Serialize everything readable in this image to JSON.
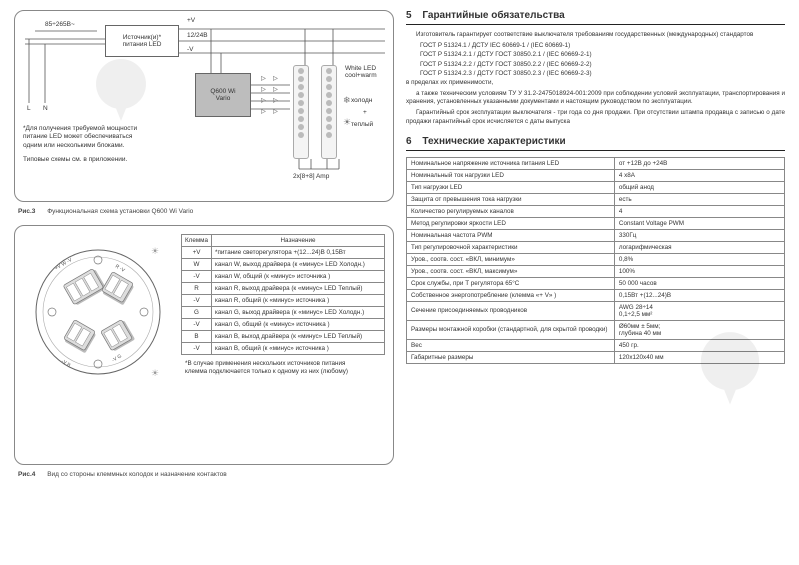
{
  "diagram1": {
    "voltage_in": "85÷265В~",
    "psu_label": "Источник(и)*\nпитания LED",
    "l_label": "L",
    "n_label": "N",
    "plus_v": "+V",
    "rail_v": "12/24В",
    "minus_v": "-V",
    "controller": "Q600 Wi\nVario",
    "led_label": "White LED\ncool+warm",
    "cold": "холодн",
    "plus": "+",
    "warm": "теплый",
    "amp": "2x[8+8] Amp",
    "note1": "*Для получения требуемой мощности\nпитание LED может обеспечиваться\nодним или несколькими блоками.",
    "note2": "Типовые схемы см. в приложении."
  },
  "caption1": "Рис.3",
  "caption1_text": "Функциональная схема установки Q600 Wi Vario",
  "terminals": {
    "col_klemma": "Клемма",
    "col_purpose": "Назначение",
    "rows": [
      {
        "k": "+V",
        "p": "*питание светорегулятора   +(12...24)В   0,15Вт"
      },
      {
        "k": "W",
        "p": "канал W, выход драйвера   (к «минус» LED Холодн.)"
      },
      {
        "k": "-V",
        "p": "канал W, общий                 (к «минус» источника )"
      },
      {
        "k": "R",
        "p": "канал R, выход драйвера   (к «минус» LED Теплый)"
      },
      {
        "k": "-V",
        "p": "канал R, общий                 (к «минус» источника )"
      },
      {
        "k": "G",
        "p": "канал G, выход драйвера (к «минус» LED Холодн.)"
      },
      {
        "k": "-V",
        "p": "канал G, общий                 (к «минус» источника )"
      },
      {
        "k": "B",
        "p": "канал B, выход драйвера  (к «минус» LED Теплый)"
      },
      {
        "k": "-V",
        "p": "канал B, общий                 (к «минус» источника )"
      }
    ],
    "footnote": "*В случае применения нескольких источников питания\nклемма подключается только к одному из них (любому)"
  },
  "caption2": "Рис.4",
  "caption2_text": "Вид со стороны клеммных колодок и назначение контактов",
  "circ_labels": {
    "tl": "+V W -V",
    "tr": "R -V",
    "bl": "-V B",
    "br": "-V G"
  },
  "sect5": {
    "num": "5",
    "title": "Гарантийные обязательства",
    "p1": "Изготовитель гарантирует соответствие выключателя требованиям государственных (международных) стандартов",
    "std1": "ГОСТ Р 51324.1 / ДСТУ IEC 60669-1        / (IEC 60669-1)",
    "std2": "ГОСТ Р 51324.2.1 / ДСТУ ГОСТ 30850.2.1 / (IEC 60669-2-1)",
    "std3": "ГОСТ Р 51324.2.2 / ДСТУ ГОСТ 30850.2.2 / (IEC 60669-2-2)",
    "std4": "ГОСТ Р 51324.2.3 / ДСТУ ГОСТ 30850.2.3 / (IEC 60669-2-3)",
    "p2": "в пределах их применимости,",
    "p3": "а также техническим условиям ТУ У 31.2-2475018924-001:2009 при соблюдении условий эксплуатации, транспортирования и хранения, установленных указанными документами и настоящим руководством по эксплуатации.",
    "p4": "Гарантийный срок эксплуатации выключателя - три года со дня продажи. При отсутствии штампа продавца с записью о дате продажи гарантийный срок исчисляется с даты выпуска"
  },
  "sect6": {
    "num": "6",
    "title": "Технические характеристики",
    "rows": [
      {
        "k": "Номинальное напряжение источника питания LED",
        "v": "от  +12В до  +24В"
      },
      {
        "k": "Номинальный ток нагрузки LED",
        "v": "4 х8А"
      },
      {
        "k": "Тип нагрузки LED",
        "v": "общий анод"
      },
      {
        "k": "Защита от превышения тока нагрузки",
        "v": "есть"
      },
      {
        "k": "Количество регулируемых каналов",
        "v": "4"
      },
      {
        "k": "Метод регулировки яркости LED",
        "v": "Constant Voltage PWM"
      },
      {
        "k": "Номинальная частота PWM",
        "v": "330Гц"
      },
      {
        "k": "Тип регулировочной характеристики",
        "v": "логарифмическая"
      },
      {
        "k": "Уров., соотв. сост. «ВКЛ, минимум»",
        "v": "0,8%"
      },
      {
        "k": "Уров., соотв. сост. «ВКЛ, максимум»",
        "v": "100%"
      },
      {
        "k": "Срок службы, при Т регулятора  65°С",
        "v": "50 000 часов"
      },
      {
        "k": "Собственное энергопотребление (клемма «+ V» )",
        "v": "0,15Вт  +(12...24)В"
      },
      {
        "k": "Сечение присоединяемых проводников",
        "v": "AWG 28÷14\n0,1÷2,5 мм²"
      },
      {
        "k": "Размеры монтажной коробки (стандартной, для скрытой проводки)",
        "v": "Ø60мм ± 5мм;\nглубина 40 мм"
      },
      {
        "k": "Вес",
        "v": "450 гр."
      },
      {
        "k": "Габаритные размеры",
        "v": "120х120х40 мм"
      }
    ]
  }
}
